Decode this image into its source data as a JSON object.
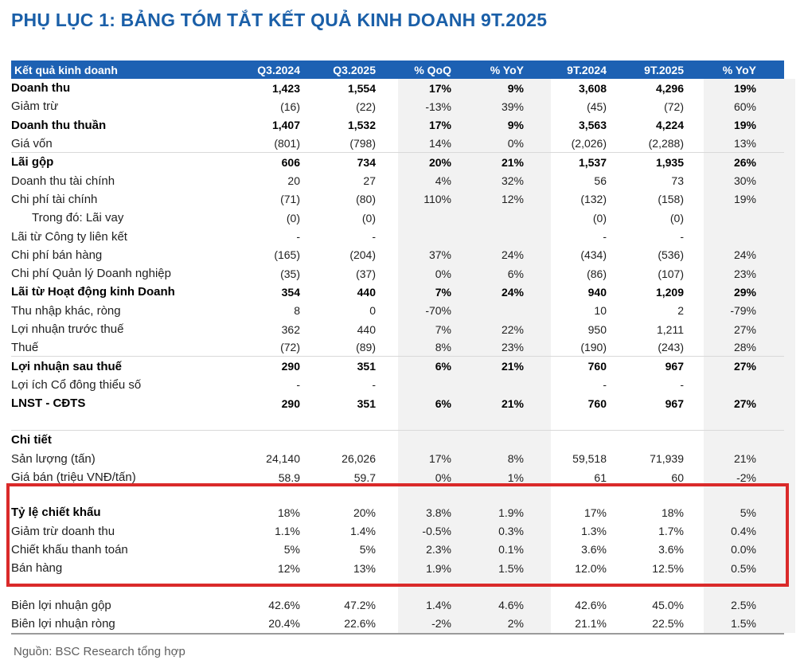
{
  "page": {
    "title": "PHỤ LỤC 1: BẢNG TÓM TẮT KẾT QUẢ KINH DOANH 9T.2025",
    "source_note": "Nguồn: BSC Research tổng hợp"
  },
  "colors": {
    "header_bg": "#1d61b3",
    "title_color": "#1a5fa8",
    "highlight_red": "#da2a2a",
    "band_gray": "#f2f2f2"
  },
  "table": {
    "columns": [
      "Kết quả kinh doanh",
      "Q3.2024",
      "Q3.2025",
      "% QoQ",
      "% YoY",
      "9T.2024",
      "9T.2025",
      "% YoY"
    ],
    "rows": [
      {
        "label": "Doanh thu",
        "style": "bold",
        "values": [
          "1,423",
          "1,554",
          "17%",
          "9%",
          "3,608",
          "4,296",
          "19%"
        ]
      },
      {
        "label": "Giảm trừ",
        "values": [
          "(16)",
          "(22)",
          "-13%",
          "39%",
          "(45)",
          "(72)",
          "60%"
        ]
      },
      {
        "label": "Doanh thu thuần",
        "style": "bold",
        "values": [
          "1,407",
          "1,532",
          "17%",
          "9%",
          "3,563",
          "4,224",
          "19%"
        ]
      },
      {
        "label": "Giá vốn",
        "sep": true,
        "values": [
          "(801)",
          "(798)",
          "14%",
          "0%",
          "(2,026)",
          "(2,288)",
          "13%"
        ]
      },
      {
        "label": "Lãi gộp",
        "style": "bold",
        "values": [
          "606",
          "734",
          "20%",
          "21%",
          "1,537",
          "1,935",
          "26%"
        ]
      },
      {
        "label": "Doanh thu tài chính",
        "values": [
          "20",
          "27",
          "4%",
          "32%",
          "56",
          "73",
          "30%"
        ]
      },
      {
        "label": "Chi phí tài chính",
        "values": [
          "(71)",
          "(80)",
          "110%",
          "12%",
          "(132)",
          "(158)",
          "19%"
        ]
      },
      {
        "label": "Trong đó: Lãi vay",
        "style": "indent",
        "values": [
          "(0)",
          "(0)",
          "",
          "",
          "(0)",
          "(0)",
          ""
        ]
      },
      {
        "label": "Lãi từ Công ty liên kết",
        "values": [
          "-",
          "-",
          "",
          "",
          "-",
          "-",
          ""
        ]
      },
      {
        "label": "Chi phí bán hàng",
        "values": [
          "(165)",
          "(204)",
          "37%",
          "24%",
          "(434)",
          "(536)",
          "24%"
        ]
      },
      {
        "label": "Chi phí Quản lý Doanh nghiệp",
        "values": [
          "(35)",
          "(37)",
          "0%",
          "6%",
          "(86)",
          "(107)",
          "23%"
        ]
      },
      {
        "label": "Lãi từ Hoạt động kinh Doanh",
        "style": "bold",
        "values": [
          "354",
          "440",
          "7%",
          "24%",
          "940",
          "1,209",
          "29%"
        ]
      },
      {
        "label": "Thu nhập khác, ròng",
        "values": [
          "8",
          "0",
          "-70%",
          "",
          "10",
          "2",
          "-79%"
        ]
      },
      {
        "label": "Lợi nhuận trước thuế",
        "values": [
          "362",
          "440",
          "7%",
          "22%",
          "950",
          "1,211",
          "27%"
        ]
      },
      {
        "label": "Thuế",
        "sep": true,
        "values": [
          "(72)",
          "(89)",
          "8%",
          "23%",
          "(190)",
          "(243)",
          "28%"
        ]
      },
      {
        "label": "Lợi nhuận sau thuế",
        "style": "bold",
        "values": [
          "290",
          "351",
          "6%",
          "21%",
          "760",
          "967",
          "27%"
        ]
      },
      {
        "label": "Lợi ích Cổ đông thiểu số",
        "values": [
          "-",
          "-",
          "",
          "",
          "-",
          "-",
          ""
        ]
      },
      {
        "label": "LNST - CĐTS",
        "style": "bold",
        "values": [
          "290",
          "351",
          "6%",
          "21%",
          "760",
          "967",
          "27%"
        ]
      },
      {
        "spacer": 23,
        "sep": true
      },
      {
        "label": "Chi tiết",
        "style": "bold",
        "values": [
          "",
          "",
          "",
          "",
          "",
          "",
          ""
        ]
      },
      {
        "label": "Sản lượng (tấn)",
        "values": [
          "24,140",
          "26,026",
          "17%",
          "8%",
          "59,518",
          "71,939",
          "21%"
        ]
      },
      {
        "label": "Giá bán (triệu VNĐ/tấn)",
        "values": [
          "58.9",
          "59.7",
          "0%",
          "1%",
          "61",
          "60",
          "-2%"
        ]
      },
      {
        "spacer": 21
      },
      {
        "label": "Tỷ lệ chiết khấu",
        "style": "bold-label",
        "values": [
          "18%",
          "20%",
          "3.8%",
          "1.9%",
          "17%",
          "18%",
          "5%"
        ]
      },
      {
        "label": "Giảm trừ doanh thu",
        "values": [
          "1.1%",
          "1.4%",
          "-0.5%",
          "0.3%",
          "1.3%",
          "1.7%",
          "0.4%"
        ]
      },
      {
        "label": "Chiết khấu thanh toán",
        "values": [
          "5%",
          "5%",
          "2.3%",
          "0.1%",
          "3.6%",
          "3.6%",
          "0.0%"
        ]
      },
      {
        "label": "Bán hàng",
        "values": [
          "12%",
          "13%",
          "1.9%",
          "1.5%",
          "12.0%",
          "12.5%",
          "0.5%"
        ]
      },
      {
        "spacer": 23
      },
      {
        "label": "Biên lợi nhuận gộp",
        "values": [
          "42.6%",
          "47.2%",
          "1.4%",
          "4.6%",
          "42.6%",
          "45.0%",
          "2.5%"
        ]
      },
      {
        "label": "Biên lợi nhuận ròng",
        "values": [
          "20.4%",
          "22.6%",
          "-2%",
          "2%",
          "21.1%",
          "22.5%",
          "1.5%"
        ]
      }
    ]
  }
}
